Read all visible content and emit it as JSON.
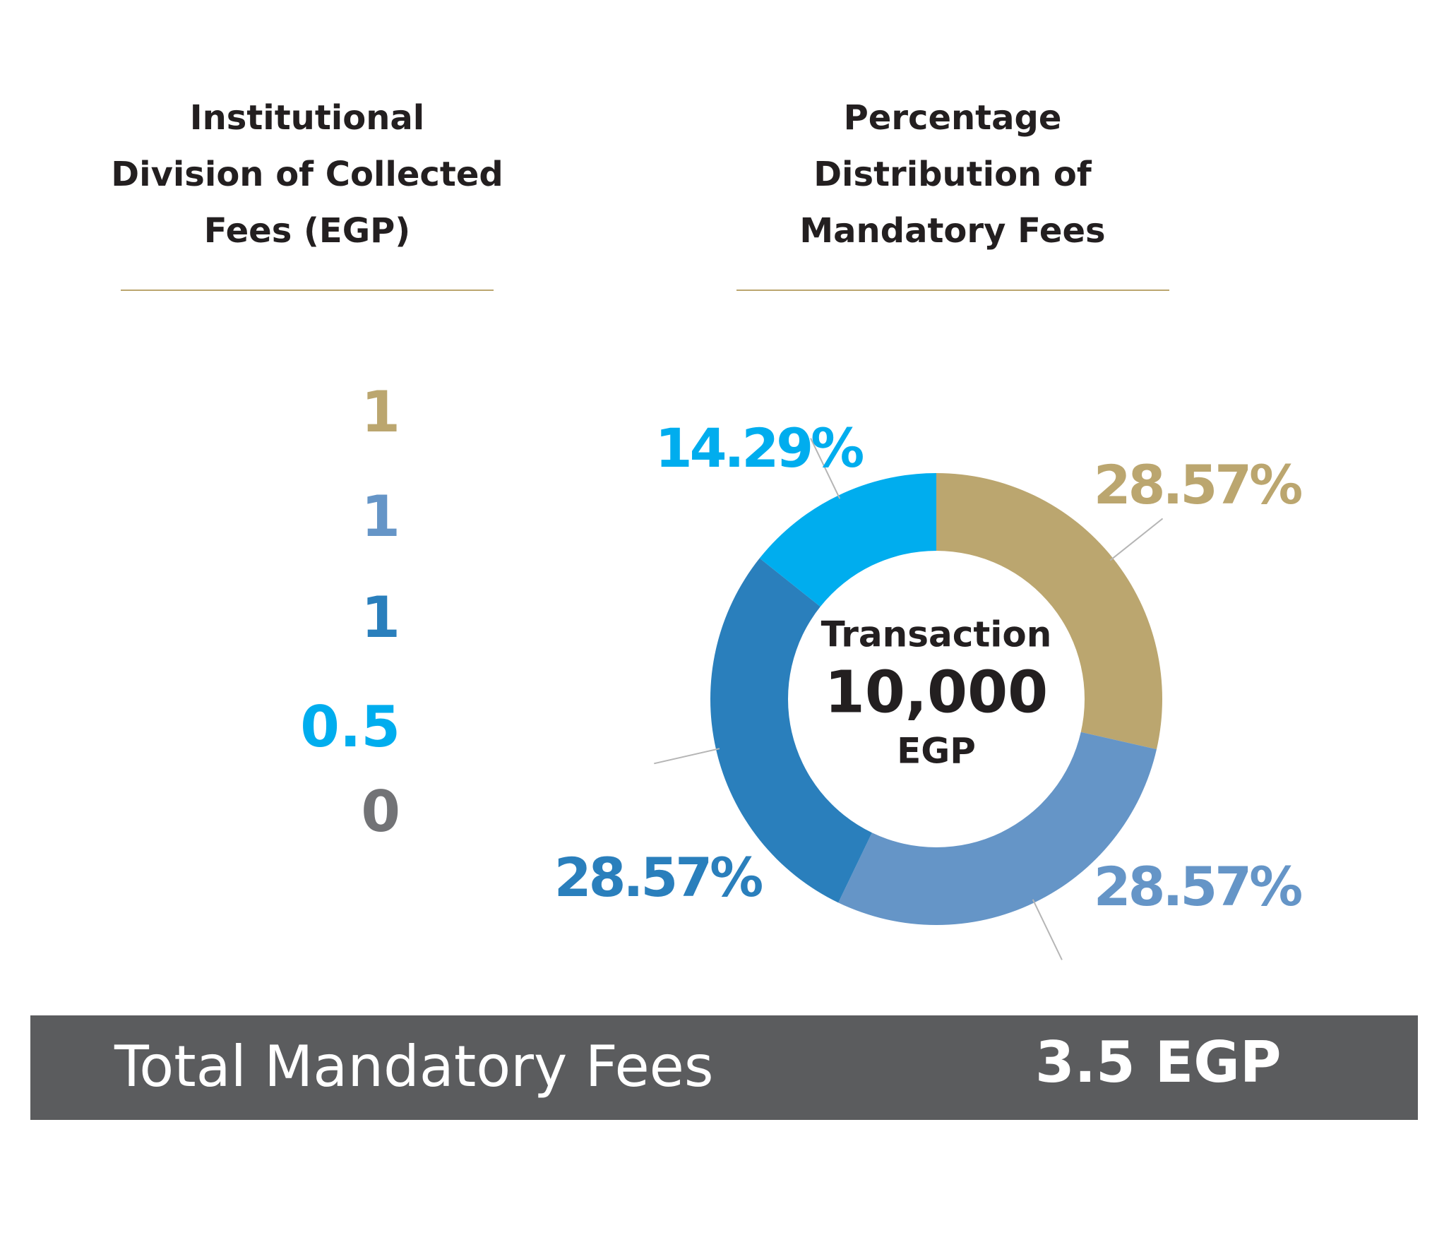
{
  "left_panel": {
    "title": [
      "Institutional",
      "Division of Collected",
      "Fees (EGP)"
    ],
    "items": [
      {
        "value": 1,
        "color": "#bba66f"
      },
      {
        "value": 1,
        "color": "#6595c7"
      },
      {
        "value": 1,
        "color": "#2a7fbc"
      },
      {
        "value": 0.5,
        "color": "#00adee"
      },
      {
        "value": 0,
        "color": "#727376"
      }
    ]
  },
  "chart_data": {
    "type": "donut",
    "title": [
      "Percentage",
      "Distribution of",
      "Mandatory Fees"
    ],
    "center": [
      "Transaction",
      "10,000",
      "EGP"
    ],
    "values": [
      28.57,
      28.57,
      28.57,
      14.29
    ],
    "value_labels": [
      "28.57%",
      "28.57%",
      "28.57%",
      "14.29%"
    ],
    "colors": [
      "#bba66f",
      "#6595c7",
      "#2a7fbc",
      "#00adee"
    ]
  },
  "footer": {
    "label": "Total Mandatory Fees",
    "value": "3.5 EGP"
  }
}
